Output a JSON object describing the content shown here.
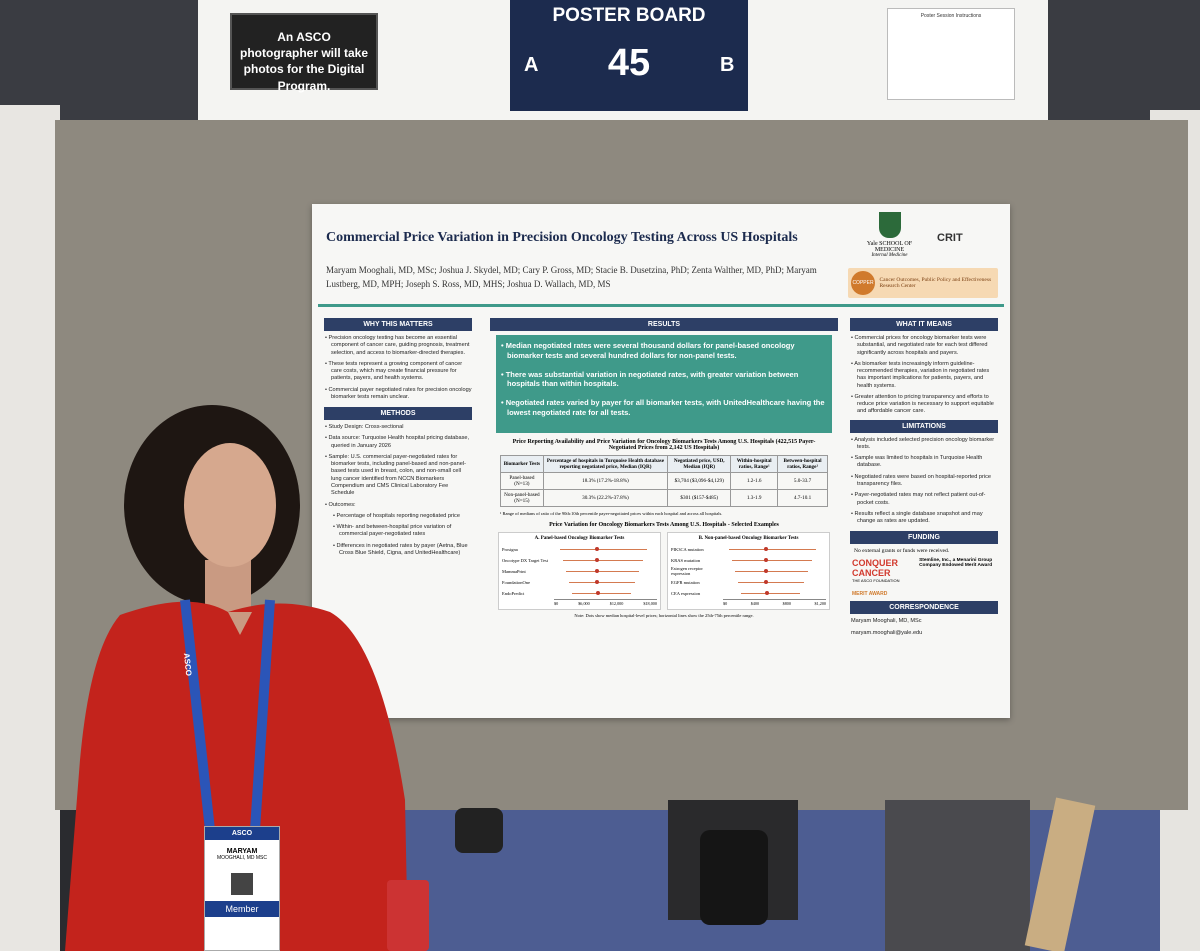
{
  "signs": {
    "photo_notice": "An ASCO photographer will take photos for the Digital Program.",
    "poster_board": {
      "label": "POSTER BOARD",
      "number": "45",
      "left": "A",
      "right": "B"
    },
    "instructions": "Poster Session Instructions"
  },
  "poster": {
    "title": "Commercial Price Variation in Precision Oncology Testing Across US Hospitals",
    "authors": "Maryam Mooghali, MD, MSc; Joshua J. Skydel, MD; Cary P. Gross, MD; Stacie B. Dusetzina, PhD; Zenta Walther, MD, PhD; Maryam Lustberg, MD, MPH; Joseph S. Ross, MD, MHS; Joshua D. Wallach, MD, MS",
    "logos": {
      "yale": "Yale SCHOOL OF MEDICINE",
      "yale_dept": "Internal Medicine",
      "crit": "CRIT",
      "copper": "COPPER",
      "copper_name": "Cancer Outcomes, Public Policy and Effectiveness Research Center"
    },
    "why": {
      "heading": "WHY THIS MATTERS",
      "bullets": [
        "Precision oncology testing has become an essential component of cancer care, guiding prognosis, treatment selection, and access to biomarker-directed therapies.",
        "These tests represent a growing component of cancer care costs, which may create financial pressure for patients, payers, and health systems.",
        "Commercial payer negotiated rates for precision oncology biomarker tests remain unclear."
      ]
    },
    "methods": {
      "heading": "METHODS",
      "items": [
        "Study Design: Cross-sectional",
        "Data source: Turquoise Health hospital pricing database, queried in January 2026",
        "Sample: U.S. commercial payer-negotiated rates for biomarker tests, including panel-based and non-panel-based tests used in breast, colon, and non-small cell lung cancer identified from NCCN Biomarkers Compendium and CMS Clinical Laboratory Fee Schedule",
        "Outcomes:"
      ],
      "outcomes": [
        "Percentage of hospitals reporting negotiated price",
        "Within- and between-hospital price variation of commercial payer-negotiated rates",
        "Differences in negotiated rates by payer (Aetna, Blue Cross Blue Shield, Cigna, and UnitedHealthcare)"
      ]
    },
    "results": {
      "heading": "RESULTS",
      "bullets": [
        "Median negotiated rates were several thousand dollars for panel-based oncology biomarker tests and several hundred dollars for non-panel tests.",
        "There was substantial variation in negotiated rates, with greater variation between hospitals than within hospitals.",
        "Negotiated rates varied by payer for all biomarker tests, with UnitedHealthcare having the lowest negotiated rate for all tests."
      ],
      "table_title": "Price Reporting Availability and Price Variation for Oncology Biomarkers Tests Among U.S. Hospitals (422,515 Payer-Negotiated Prices from 2,142 US Hospitals)",
      "table": {
        "header": [
          "Biomarker Tests",
          "Percentage of hospitals in Turquoise Health database reporting negotiated price, Median (IQR)",
          "Negotiated price, USD, Median (IQR)",
          "Within-hospital ratios, Range¹",
          "Between-hospital ratios, Range¹"
        ],
        "rows": [
          [
            "Panel-based (N=13)",
            "18.3% (17.2%-18.8%)",
            "$3,704 ($3,096-$4,129)",
            "1.2-1.6",
            "5.0-33.7"
          ],
          [
            "Non-panel-based (N=15)",
            "30.3% (22.2%-37.8%)",
            "$301 ($157-$485)",
            "1.3-1.9",
            "4.7-10.1"
          ]
        ]
      },
      "footnote": "¹ Range of medians of ratio of the 90th:10th percentile payer-negotiated prices within each hospital and across all hospitals.",
      "figure_title": "Price Variation for Oncology Biomarkers Tests Among U.S. Hospitals - Selected Examples",
      "panels": [
        {
          "title": "A. Panel-based Oncology Biomarker Tests",
          "labels": [
            "Prosigna",
            "Oncotype DX Target Test",
            "MammaPrint",
            "FoundationOne",
            "EndoPredict"
          ],
          "axis": [
            "$0",
            "$6,000",
            "$12,000",
            "$18,000"
          ]
        },
        {
          "title": "B. Non-panel-based Oncology Biomarker Tests",
          "labels": [
            "PIK3CA mutation",
            "KRAS mutation",
            "Estrogen receptor expression",
            "EGFR mutation",
            "CEA expression"
          ],
          "axis": [
            "$0",
            "$400",
            "$800",
            "$1,200"
          ]
        }
      ],
      "note": "Note: Dots show median hospital-level prices; horizontal lines show the 25th-75th percentile range."
    },
    "means": {
      "heading": "WHAT IT MEANS",
      "bullets": [
        "Commercial prices for oncology biomarker tests were substantial, and negotiated rate for each test differed significantly across hospitals and payers.",
        "As biomarker tests increasingly inform guideline-recommended therapies, variation in negotiated rates has important implications for patients, payers, and health systems.",
        "Greater attention to pricing transparency and efforts to reduce price variation is necessary to support equitable and affordable cancer care."
      ]
    },
    "limitations": {
      "heading": "LIMITATIONS",
      "bullets": [
        "Analysis included selected precision oncology biomarker tests.",
        "Sample was limited to hospitals in Turquoise Health database.",
        "Negotiated rates were based on hospital-reported price transparency files.",
        "Payer-negotiated rates may not reflect patient out-of-pocket costs.",
        "Results reflect a single database snapshot and may change as rates are updated."
      ]
    },
    "funding": {
      "heading": "FUNDING",
      "text": "No external grants or funds were received.",
      "logo": "CONQUER CANCER",
      "logo_sub": "THE ASCO FOUNDATION",
      "award": "Stemline, Inc., a Menarini Group Company Endowed Merit Award",
      "merit": "MERIT AWARD"
    },
    "correspondence": {
      "heading": "CORRESPONDENCE",
      "lines": [
        "Maryam Mooghali, MD, MSc",
        "maryam.mooghali@yale.edu"
      ]
    }
  },
  "badge": {
    "org": "ASCO",
    "first": "MARYAM",
    "last": "MOOGHALI, MD MSC",
    "type": "Member",
    "lanyard": "ASCO"
  }
}
